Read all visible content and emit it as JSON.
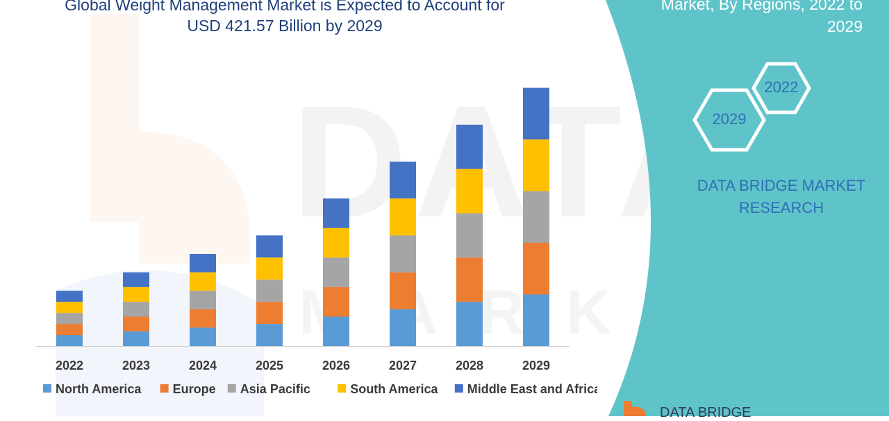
{
  "title_lines": [
    "Global Weight Management Market is Expected to Account for",
    "USD 421.57 Billion by 2029"
  ],
  "panel": {
    "title_lines": [
      "Market, By Regions, 2022 to",
      "2029"
    ],
    "hex_start": "2022",
    "hex_end": "2029",
    "brand_lines": [
      "DATA BRIDGE MARKET",
      "RESEARCH"
    ],
    "footer_logo": "DATA BRIDGE"
  },
  "watermark": {
    "main": "DATA BRIDGE",
    "sub": "MARKET RESEARCH"
  },
  "colors": {
    "panel_bg": "#5fc4c9",
    "north_america": "#5b9bd5",
    "europe": "#ed7d31",
    "asia_pacific": "#a5a5a5",
    "south_america": "#ffc000",
    "middle_east_africa": "#4472c4",
    "text_dark": "#3a3a3a",
    "title_blue": "#1f3f7a"
  },
  "chart_data": {
    "type": "bar",
    "stacked": true,
    "categories": [
      "2022",
      "2023",
      "2024",
      "2025",
      "2026",
      "2027",
      "2028",
      "2029"
    ],
    "series": [
      {
        "name": "North America",
        "color": "#5b9bd5",
        "values": [
          6,
          8,
          10,
          12,
          16,
          20,
          24,
          28
        ]
      },
      {
        "name": "Europe",
        "color": "#ed7d31",
        "values": [
          6,
          8,
          10,
          12,
          16,
          20,
          24,
          28
        ]
      },
      {
        "name": "Asia Pacific",
        "color": "#a5a5a5",
        "values": [
          6,
          8,
          10,
          12,
          16,
          20,
          24,
          28
        ]
      },
      {
        "name": "South America",
        "color": "#ffc000",
        "values": [
          6,
          8,
          10,
          12,
          16,
          20,
          24,
          28
        ]
      },
      {
        "name": "Middle East and Africa",
        "color": "#4472c4",
        "values": [
          6,
          8,
          10,
          12,
          16,
          20,
          24,
          28
        ]
      }
    ],
    "ylim": [
      0,
      150
    ],
    "grid": false,
    "legend": "bottom"
  }
}
